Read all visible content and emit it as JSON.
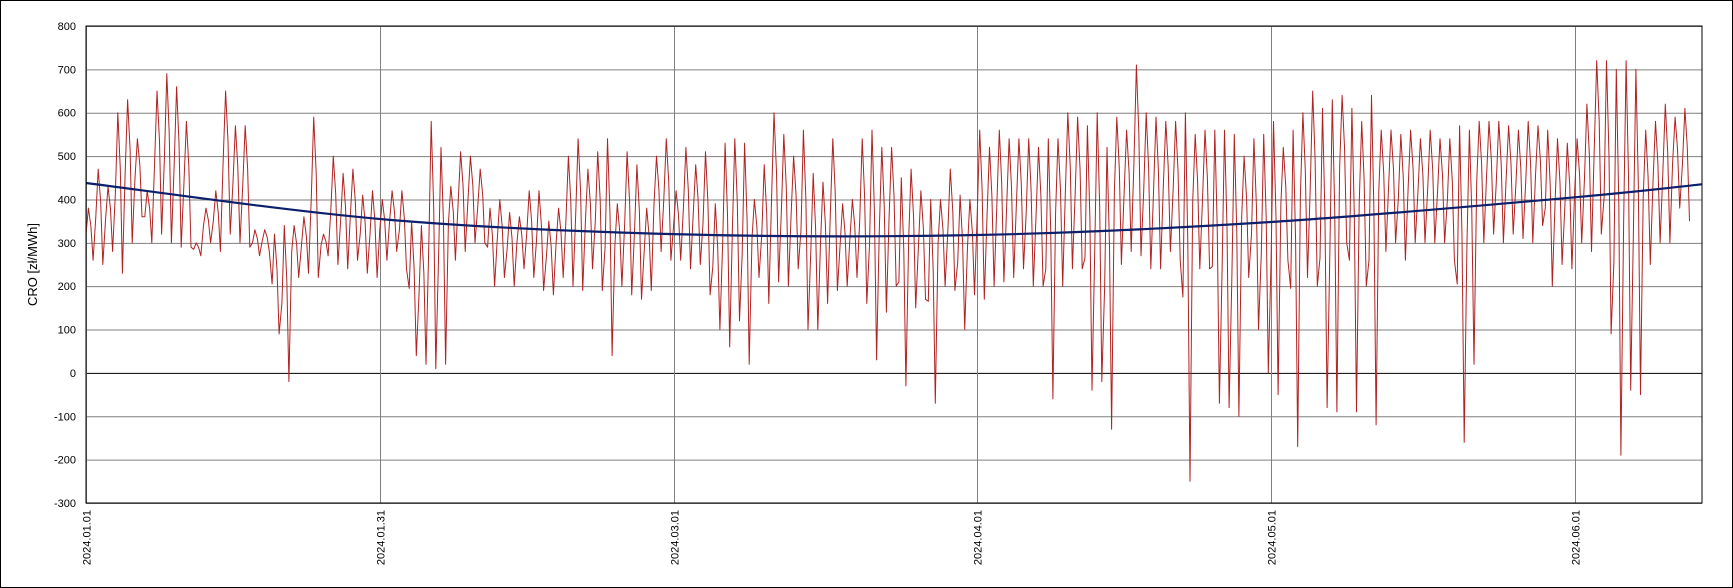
{
  "chart_data": {
    "type": "line",
    "title": "",
    "xlabel": "",
    "ylabel": "CRO [zł/MWh]",
    "ylim": [
      -300,
      800
    ],
    "yticks": [
      800,
      700,
      600,
      500,
      400,
      300,
      200,
      100,
      0,
      -100,
      -200,
      -300
    ],
    "xlim": [
      "2024-01-01",
      "2024-06-14"
    ],
    "xticks": [
      "2024.01.01",
      "2024.01.31",
      "2024.03.01",
      "2024.04.01",
      "2024.05.01",
      "2024.06.01"
    ],
    "grid": true,
    "colors": {
      "series": "#b22222",
      "trend": "#0b1f6b",
      "grid": "#808080"
    },
    "series": [
      {
        "type": "line",
        "resolution": "daily-envelope (min/max per day, approximated)",
        "x": [
          "2024-01-01",
          "2024-01-02",
          "2024-01-03",
          "2024-01-04",
          "2024-01-05",
          "2024-01-06",
          "2024-01-07",
          "2024-01-08",
          "2024-01-09",
          "2024-01-10",
          "2024-01-11",
          "2024-01-12",
          "2024-01-13",
          "2024-01-14",
          "2024-01-15",
          "2024-01-16",
          "2024-01-17",
          "2024-01-18",
          "2024-01-19",
          "2024-01-20",
          "2024-01-21",
          "2024-01-22",
          "2024-01-23",
          "2024-01-24",
          "2024-01-25",
          "2024-01-26",
          "2024-01-27",
          "2024-01-28",
          "2024-01-29",
          "2024-01-30",
          "2024-01-31",
          "2024-02-01",
          "2024-02-02",
          "2024-02-03",
          "2024-02-04",
          "2024-02-05",
          "2024-02-06",
          "2024-02-07",
          "2024-02-08",
          "2024-02-09",
          "2024-02-10",
          "2024-02-11",
          "2024-02-12",
          "2024-02-13",
          "2024-02-14",
          "2024-02-15",
          "2024-02-16",
          "2024-02-17",
          "2024-02-18",
          "2024-02-19",
          "2024-02-20",
          "2024-02-21",
          "2024-02-22",
          "2024-02-23",
          "2024-02-24",
          "2024-02-25",
          "2024-02-26",
          "2024-02-27",
          "2024-02-28",
          "2024-02-29",
          "2024-03-01",
          "2024-03-02",
          "2024-03-03",
          "2024-03-04",
          "2024-03-05",
          "2024-03-06",
          "2024-03-07",
          "2024-03-08",
          "2024-03-09",
          "2024-03-10",
          "2024-03-11",
          "2024-03-12",
          "2024-03-13",
          "2024-03-14",
          "2024-03-15",
          "2024-03-16",
          "2024-03-17",
          "2024-03-18",
          "2024-03-19",
          "2024-03-20",
          "2024-03-21",
          "2024-03-22",
          "2024-03-23",
          "2024-03-24",
          "2024-03-25",
          "2024-03-26",
          "2024-03-27",
          "2024-03-28",
          "2024-03-29",
          "2024-03-30",
          "2024-03-31",
          "2024-04-01",
          "2024-04-02",
          "2024-04-03",
          "2024-04-04",
          "2024-04-05",
          "2024-04-06",
          "2024-04-07",
          "2024-04-08",
          "2024-04-09",
          "2024-04-10",
          "2024-04-11",
          "2024-04-12",
          "2024-04-13",
          "2024-04-14",
          "2024-04-15",
          "2024-04-16",
          "2024-04-17",
          "2024-04-18",
          "2024-04-19",
          "2024-04-20",
          "2024-04-21",
          "2024-04-22",
          "2024-04-23",
          "2024-04-24",
          "2024-04-25",
          "2024-04-26",
          "2024-04-27",
          "2024-04-28",
          "2024-04-29",
          "2024-04-30",
          "2024-05-01",
          "2024-05-02",
          "2024-05-03",
          "2024-05-04",
          "2024-05-05",
          "2024-05-06",
          "2024-05-07",
          "2024-05-08",
          "2024-05-09",
          "2024-05-10",
          "2024-05-11",
          "2024-05-12",
          "2024-05-13",
          "2024-05-14",
          "2024-05-15",
          "2024-05-16",
          "2024-05-17",
          "2024-05-18",
          "2024-05-19",
          "2024-05-20",
          "2024-05-21",
          "2024-05-22",
          "2024-05-23",
          "2024-05-24",
          "2024-05-25",
          "2024-05-26",
          "2024-05-27",
          "2024-05-28",
          "2024-05-29",
          "2024-05-30",
          "2024-05-31",
          "2024-06-01",
          "2024-06-02",
          "2024-06-03",
          "2024-06-04",
          "2024-06-05",
          "2024-06-06",
          "2024-06-07",
          "2024-06-08",
          "2024-06-09",
          "2024-06-10",
          "2024-06-11",
          "2024-06-12",
          "2024-06-13",
          "2024-06-14"
        ],
        "max": [
          380,
          470,
          430,
          600,
          630,
          540,
          420,
          650,
          690,
          660,
          580,
          300,
          380,
          420,
          650,
          570,
          570,
          330,
          330,
          320,
          340,
          340,
          360,
          590,
          320,
          500,
          460,
          470,
          410,
          420,
          400,
          420,
          420,
          350,
          340,
          580,
          520,
          430,
          510,
          500,
          470,
          380,
          400,
          370,
          360,
          420,
          420,
          350,
          380,
          500,
          540,
          470,
          510,
          540,
          390,
          510,
          480,
          380,
          500,
          540,
          420,
          520,
          480,
          510,
          390,
          530,
          540,
          530,
          400,
          480,
          600,
          550,
          500,
          560,
          460,
          440,
          540,
          390,
          400,
          540,
          560,
          520,
          520,
          450,
          470,
          420,
          400,
          400,
          470,
          410,
          400,
          560,
          520,
          560,
          540,
          540,
          540,
          520,
          540,
          540,
          600,
          590,
          570,
          600,
          520,
          590,
          560,
          710,
          600,
          590,
          580,
          580,
          600,
          550,
          560,
          560,
          560,
          550,
          500,
          540,
          550,
          580,
          520,
          560,
          600,
          650,
          610,
          630,
          640,
          610,
          580,
          640,
          560,
          560,
          550,
          560,
          540,
          560,
          540,
          540,
          570,
          560,
          580,
          580,
          580,
          570,
          560,
          580,
          570,
          560,
          540,
          530,
          540,
          620,
          720,
          720,
          700,
          720,
          700,
          560,
          580,
          620,
          590,
          610
        ],
        "min": [
          260,
          250,
          280,
          230,
          300,
          360,
          300,
          320,
          300,
          290,
          290,
          270,
          300,
          280,
          320,
          300,
          290,
          270,
          280,
          90,
          -20,
          220,
          230,
          220,
          270,
          250,
          240,
          260,
          230,
          220,
          260,
          280,
          240,
          40,
          20,
          10,
          20,
          260,
          280,
          300,
          300,
          200,
          220,
          200,
          240,
          220,
          190,
          180,
          220,
          200,
          190,
          240,
          190,
          40,
          200,
          180,
          170,
          190,
          280,
          260,
          260,
          240,
          250,
          180,
          100,
          60,
          120,
          20,
          220,
          160,
          210,
          200,
          240,
          100,
          100,
          160,
          190,
          200,
          220,
          160,
          30,
          140,
          200,
          -30,
          150,
          170,
          -70,
          200,
          190,
          100,
          180,
          170,
          200,
          210,
          220,
          240,
          200,
          200,
          -60,
          200,
          240,
          240,
          -40,
          -20,
          -130,
          250,
          280,
          270,
          240,
          240,
          280,
          260,
          -250,
          240,
          240,
          -70,
          -80,
          -100,
          220,
          100,
          0,
          -50,
          260,
          -170,
          220,
          200,
          -80,
          -90,
          300,
          -90,
          200,
          -120,
          280,
          300,
          260,
          300,
          300,
          300,
          300,
          260,
          -160,
          20,
          300,
          320,
          300,
          320,
          310,
          300,
          340,
          200,
          250,
          240,
          300,
          280,
          320,
          90,
          -190,
          -40,
          -50,
          250,
          300,
          300,
          380,
          350
        ]
      },
      {
        "name": "",
        "type": "trend",
        "x": [
          "2024-01-01",
          "2024-01-31",
          "2024-03-01",
          "2024-04-01",
          "2024-05-01",
          "2024-06-01",
          "2024-06-14"
        ],
        "values": [
          438,
          355,
          320,
          318,
          348,
          405,
          435
        ]
      }
    ]
  }
}
